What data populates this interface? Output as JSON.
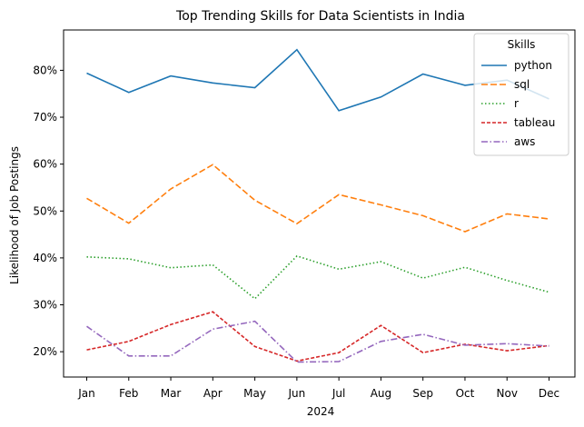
{
  "chart_data": {
    "type": "line",
    "title": "Top Trending Skills for Data Scientists in India",
    "xlabel": "2024",
    "ylabel": "Likelihood of Job Postings",
    "categories": [
      "Jan",
      "Feb",
      "Mar",
      "Apr",
      "May",
      "Jun",
      "Jul",
      "Aug",
      "Sep",
      "Oct",
      "Nov",
      "Dec"
    ],
    "y_ticks": [
      "20%",
      "30%",
      "40%",
      "50%",
      "60%",
      "70%",
      "80%"
    ],
    "ylim": [
      14.6,
      88.6
    ],
    "grid": false,
    "legend": {
      "title": "Skills",
      "placement": "top-right"
    },
    "series": [
      {
        "name": "python",
        "color": "#1f77b4",
        "dash": "solid",
        "values": [
          79.4,
          75.3,
          78.8,
          77.3,
          76.3,
          84.4,
          71.4,
          74.3,
          79.2,
          76.8,
          77.9,
          73.9
        ]
      },
      {
        "name": "sql",
        "color": "#ff7f0e",
        "dash": "dashed",
        "values": [
          52.7,
          47.4,
          54.7,
          59.9,
          52.3,
          47.3,
          53.5,
          51.3,
          49.0,
          45.6,
          49.4,
          48.3
        ]
      },
      {
        "name": "r",
        "color": "#2ca02c",
        "dash": "dotted",
        "values": [
          40.2,
          39.8,
          37.9,
          38.5,
          31.3,
          40.4,
          37.6,
          39.2,
          35.7,
          38.0,
          35.2,
          32.7
        ]
      },
      {
        "name": "tableau",
        "color": "#d62728",
        "dash": "short-dashed",
        "values": [
          20.4,
          22.2,
          25.8,
          28.5,
          21.1,
          18.0,
          19.8,
          25.6,
          19.8,
          21.6,
          20.2,
          21.3
        ]
      },
      {
        "name": "aws",
        "color": "#9467bd",
        "dash": "dash-dot",
        "values": [
          25.4,
          19.1,
          19.1,
          24.8,
          26.5,
          17.8,
          17.9,
          22.2,
          23.7,
          21.4,
          21.7,
          21.2
        ]
      }
    ]
  }
}
